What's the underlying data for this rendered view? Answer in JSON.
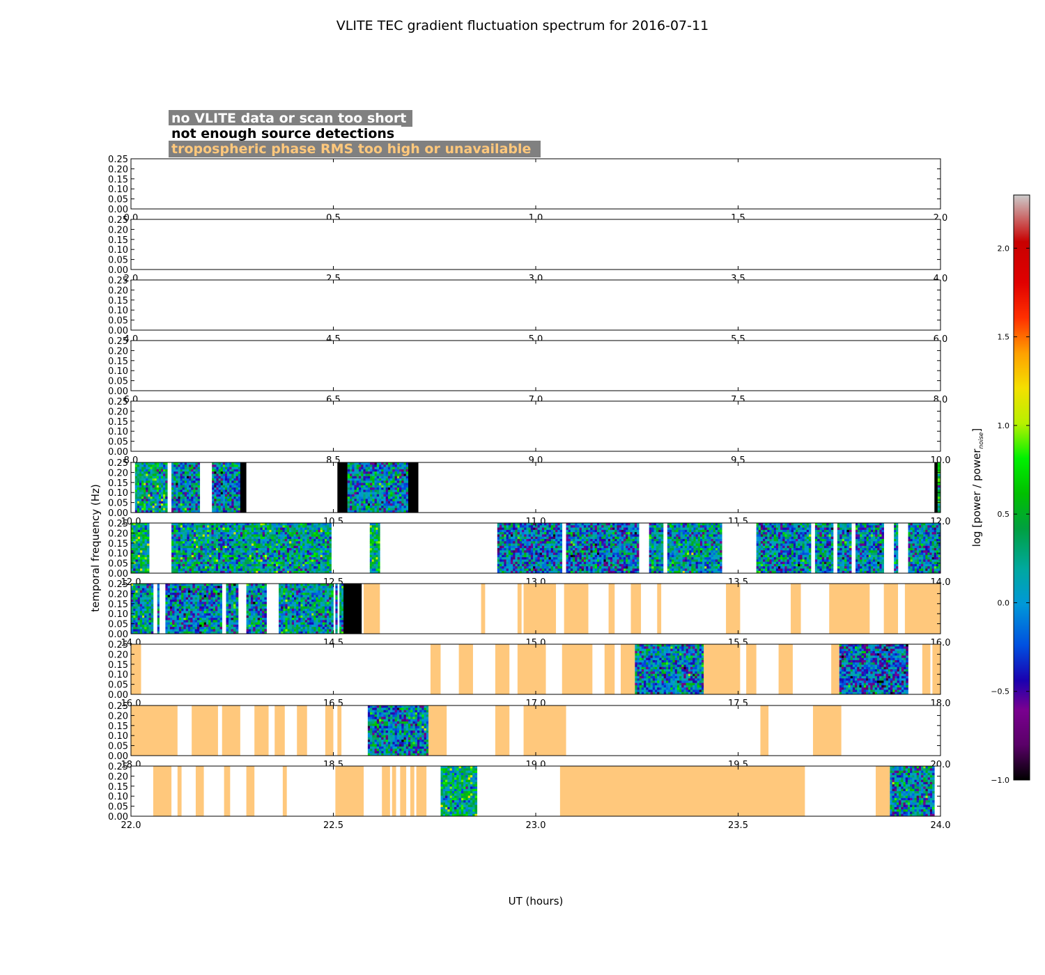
{
  "chart_data": {
    "type": "heatmap",
    "title": "VLITE TEC gradient fluctuation spectrum for 2016-07-11",
    "xlabel": "UT (hours)",
    "ylabel": "temporal frequency (Hz)",
    "ylim": [
      0,
      0.25
    ],
    "y_ticks": [
      "0.00",
      "0.05",
      "0.10",
      "0.15",
      "0.20",
      "0.25"
    ],
    "legend": {
      "placement": "top-left",
      "entries": [
        {
          "label": "no VLITE data or scan too short",
          "text_color": "#ffffff",
          "box_color": "#808080",
          "status": "white"
        },
        {
          "label": "not enough source detections",
          "text_color": "#000000",
          "box_color": "#ffffff",
          "status": "black"
        },
        {
          "label": "tropospheric phase RMS too high or unavailable",
          "text_color": "#ffc87c",
          "box_color": "#808080",
          "status": "orange"
        }
      ]
    },
    "colorbar": {
      "label": "log [power / power",
      "label_subscript": "noise",
      "label_close": "]",
      "range": [
        -1.0,
        2.3
      ],
      "ticks": [
        {
          "value": -1.0,
          "label": "−1.0"
        },
        {
          "value": -0.5,
          "label": "−0.5"
        },
        {
          "value": 0.0,
          "label": "0.0"
        },
        {
          "value": 0.5,
          "label": "0.5"
        },
        {
          "value": 1.0,
          "label": "1.0"
        },
        {
          "value": 1.5,
          "label": "1.5"
        },
        {
          "value": 2.0,
          "label": "2.0"
        }
      ],
      "colormap": "spectral"
    },
    "status_colors": {
      "black": "#000000",
      "orange": "#ffc87c",
      "white": "#ffffff"
    },
    "panels": [
      {
        "xlim": [
          0.0,
          2.0
        ],
        "x_ticks": [
          "0.0",
          "0.5",
          "1.0",
          "1.5",
          "2.0"
        ],
        "segments": []
      },
      {
        "xlim": [
          2.0,
          4.0
        ],
        "x_ticks": [
          "2.0",
          "2.5",
          "3.0",
          "3.5",
          "4.0"
        ],
        "segments": []
      },
      {
        "xlim": [
          4.0,
          6.0
        ],
        "x_ticks": [
          "4.0",
          "4.5",
          "5.0",
          "5.5",
          "6.0"
        ],
        "segments": []
      },
      {
        "xlim": [
          6.0,
          8.0
        ],
        "x_ticks": [
          "6.0",
          "6.5",
          "7.0",
          "7.5",
          "8.0"
        ],
        "segments": []
      },
      {
        "xlim": [
          8.0,
          10.0
        ],
        "x_ticks": [
          "8.0",
          "8.5",
          "9.0",
          "9.5",
          "10.0"
        ],
        "segments": []
      },
      {
        "xlim": [
          10.0,
          12.0
        ],
        "x_ticks": [
          "10.0",
          "10.5",
          "11.0",
          "11.5",
          "12.0"
        ],
        "segments": [
          {
            "start": 10.01,
            "end": 10.09,
            "status": "data",
            "level": 0.2
          },
          {
            "start": 10.1,
            "end": 10.17,
            "status": "data",
            "level": 0.0
          },
          {
            "start": 10.2,
            "end": 10.27,
            "status": "data",
            "level": -0.1
          },
          {
            "start": 10.27,
            "end": 10.285,
            "status": "black"
          },
          {
            "start": 10.51,
            "end": 10.535,
            "status": "black"
          },
          {
            "start": 10.535,
            "end": 10.685,
            "status": "data",
            "level": 0.0
          },
          {
            "start": 10.685,
            "end": 10.71,
            "status": "black"
          },
          {
            "start": 11.985,
            "end": 11.993,
            "status": "black"
          },
          {
            "start": 11.993,
            "end": 12.0,
            "status": "data",
            "level": 0.4
          }
        ]
      },
      {
        "xlim": [
          12.0,
          14.0
        ],
        "x_ticks": [
          "12.0",
          "12.5",
          "13.0",
          "13.5",
          "14.0"
        ],
        "segments": [
          {
            "start": 12.0,
            "end": 12.045,
            "status": "data",
            "level": 0.3
          },
          {
            "start": 12.1,
            "end": 12.495,
            "status": "data",
            "level": 0.15
          },
          {
            "start": 12.59,
            "end": 12.615,
            "status": "data",
            "level": 0.4
          },
          {
            "start": 12.905,
            "end": 13.065,
            "status": "data",
            "level": -0.1
          },
          {
            "start": 13.075,
            "end": 13.255,
            "status": "data",
            "level": -0.1
          },
          {
            "start": 13.28,
            "end": 13.315,
            "status": "data",
            "level": 0.1
          },
          {
            "start": 13.325,
            "end": 13.46,
            "status": "data",
            "level": 0.1
          },
          {
            "start": 13.545,
            "end": 13.68,
            "status": "data",
            "level": 0.0
          },
          {
            "start": 13.69,
            "end": 13.735,
            "status": "data",
            "level": 0.0
          },
          {
            "start": 13.745,
            "end": 13.78,
            "status": "data",
            "level": 0.0
          },
          {
            "start": 13.79,
            "end": 13.86,
            "status": "data",
            "level": 0.0
          },
          {
            "start": 13.885,
            "end": 13.895,
            "status": "data",
            "level": 0.0
          },
          {
            "start": 13.92,
            "end": 14.0,
            "status": "data",
            "level": 0.0
          }
        ]
      },
      {
        "xlim": [
          14.0,
          16.0
        ],
        "x_ticks": [
          "14.0",
          "14.5",
          "15.0",
          "15.5",
          "16.0"
        ],
        "segments": [
          {
            "start": 14.0,
            "end": 14.055,
            "status": "data",
            "level": 0.1
          },
          {
            "start": 14.065,
            "end": 14.07,
            "status": "data",
            "level": 0.0
          },
          {
            "start": 14.085,
            "end": 14.225,
            "status": "data",
            "level": -0.05
          },
          {
            "start": 14.235,
            "end": 14.265,
            "status": "data",
            "level": 0.0
          },
          {
            "start": 14.285,
            "end": 14.335,
            "status": "data",
            "level": 0.0
          },
          {
            "start": 14.365,
            "end": 14.5,
            "status": "data",
            "level": 0.1
          },
          {
            "start": 14.505,
            "end": 14.51,
            "status": "data",
            "level": 0.0
          },
          {
            "start": 14.515,
            "end": 14.525,
            "status": "data",
            "level": 0.1
          },
          {
            "start": 14.525,
            "end": 14.57,
            "status": "black"
          },
          {
            "start": 14.575,
            "end": 14.615,
            "status": "orange"
          },
          {
            "start": 14.865,
            "end": 14.875,
            "status": "orange"
          },
          {
            "start": 14.955,
            "end": 14.965,
            "status": "orange"
          },
          {
            "start": 14.97,
            "end": 15.05,
            "status": "orange"
          },
          {
            "start": 15.07,
            "end": 15.13,
            "status": "orange"
          },
          {
            "start": 15.18,
            "end": 15.195,
            "status": "orange"
          },
          {
            "start": 15.235,
            "end": 15.26,
            "status": "orange"
          },
          {
            "start": 15.3,
            "end": 15.31,
            "status": "orange"
          },
          {
            "start": 15.47,
            "end": 15.505,
            "status": "orange"
          },
          {
            "start": 15.63,
            "end": 15.655,
            "status": "orange"
          },
          {
            "start": 15.725,
            "end": 15.825,
            "status": "orange"
          },
          {
            "start": 15.86,
            "end": 15.895,
            "status": "orange"
          },
          {
            "start": 15.912,
            "end": 16.0,
            "status": "orange"
          }
        ]
      },
      {
        "xlim": [
          16.0,
          18.0
        ],
        "x_ticks": [
          "16.0",
          "16.5",
          "17.0",
          "17.5",
          "18.0"
        ],
        "segments": [
          {
            "start": 16.0,
            "end": 16.025,
            "status": "orange"
          },
          {
            "start": 16.74,
            "end": 16.765,
            "status": "orange"
          },
          {
            "start": 16.81,
            "end": 16.845,
            "status": "orange"
          },
          {
            "start": 16.9,
            "end": 16.935,
            "status": "orange"
          },
          {
            "start": 16.955,
            "end": 17.025,
            "status": "orange"
          },
          {
            "start": 17.065,
            "end": 17.14,
            "status": "orange"
          },
          {
            "start": 17.17,
            "end": 17.195,
            "status": "orange"
          },
          {
            "start": 17.21,
            "end": 17.245,
            "status": "orange"
          },
          {
            "start": 17.245,
            "end": 17.415,
            "status": "data",
            "level": 0.0
          },
          {
            "start": 17.415,
            "end": 17.505,
            "status": "orange"
          },
          {
            "start": 17.52,
            "end": 17.545,
            "status": "orange"
          },
          {
            "start": 17.6,
            "end": 17.635,
            "status": "orange"
          },
          {
            "start": 17.73,
            "end": 17.75,
            "status": "orange"
          },
          {
            "start": 17.75,
            "end": 17.92,
            "status": "data",
            "level": -0.2
          },
          {
            "start": 17.955,
            "end": 17.975,
            "status": "orange"
          },
          {
            "start": 17.98,
            "end": 18.0,
            "status": "orange"
          }
        ]
      },
      {
        "xlim": [
          18.0,
          20.0
        ],
        "x_ticks": [
          "18.0",
          "18.5",
          "19.0",
          "19.5",
          "20.0"
        ],
        "segments": [
          {
            "start": 18.0,
            "end": 18.115,
            "status": "orange"
          },
          {
            "start": 18.15,
            "end": 18.215,
            "status": "orange"
          },
          {
            "start": 18.225,
            "end": 18.27,
            "status": "orange"
          },
          {
            "start": 18.305,
            "end": 18.34,
            "status": "orange"
          },
          {
            "start": 18.355,
            "end": 18.38,
            "status": "orange"
          },
          {
            "start": 18.41,
            "end": 18.435,
            "status": "orange"
          },
          {
            "start": 18.48,
            "end": 18.5,
            "status": "orange"
          },
          {
            "start": 18.51,
            "end": 18.52,
            "status": "orange"
          },
          {
            "start": 18.585,
            "end": 18.735,
            "status": "data",
            "level": 0.0
          },
          {
            "start": 18.735,
            "end": 18.78,
            "status": "orange"
          },
          {
            "start": 18.9,
            "end": 18.935,
            "status": "orange"
          },
          {
            "start": 18.97,
            "end": 19.075,
            "status": "orange"
          },
          {
            "start": 19.555,
            "end": 19.575,
            "status": "orange"
          },
          {
            "start": 19.685,
            "end": 19.755,
            "status": "orange"
          }
        ]
      },
      {
        "xlim": [
          22.0,
          24.0
        ],
        "x_ticks": [
          "22.0",
          "22.5",
          "23.0",
          "23.5",
          "24.0"
        ],
        "segments": [
          {
            "start": 22.055,
            "end": 22.1,
            "status": "orange"
          },
          {
            "start": 22.115,
            "end": 22.125,
            "status": "orange"
          },
          {
            "start": 22.16,
            "end": 22.18,
            "status": "orange"
          },
          {
            "start": 22.23,
            "end": 22.245,
            "status": "orange"
          },
          {
            "start": 22.285,
            "end": 22.305,
            "status": "orange"
          },
          {
            "start": 22.375,
            "end": 22.385,
            "status": "orange"
          },
          {
            "start": 22.505,
            "end": 22.575,
            "status": "orange"
          },
          {
            "start": 22.62,
            "end": 22.64,
            "status": "orange"
          },
          {
            "start": 22.645,
            "end": 22.655,
            "status": "orange"
          },
          {
            "start": 22.665,
            "end": 22.68,
            "status": "orange"
          },
          {
            "start": 22.69,
            "end": 22.7,
            "status": "orange"
          },
          {
            "start": 22.705,
            "end": 22.73,
            "status": "orange"
          },
          {
            "start": 22.765,
            "end": 22.855,
            "status": "data",
            "level": 0.3
          },
          {
            "start": 23.06,
            "end": 23.665,
            "status": "orange"
          },
          {
            "start": 23.84,
            "end": 23.875,
            "status": "orange"
          },
          {
            "start": 23.875,
            "end": 23.985,
            "status": "data",
            "level": 0.0
          }
        ]
      }
    ]
  }
}
